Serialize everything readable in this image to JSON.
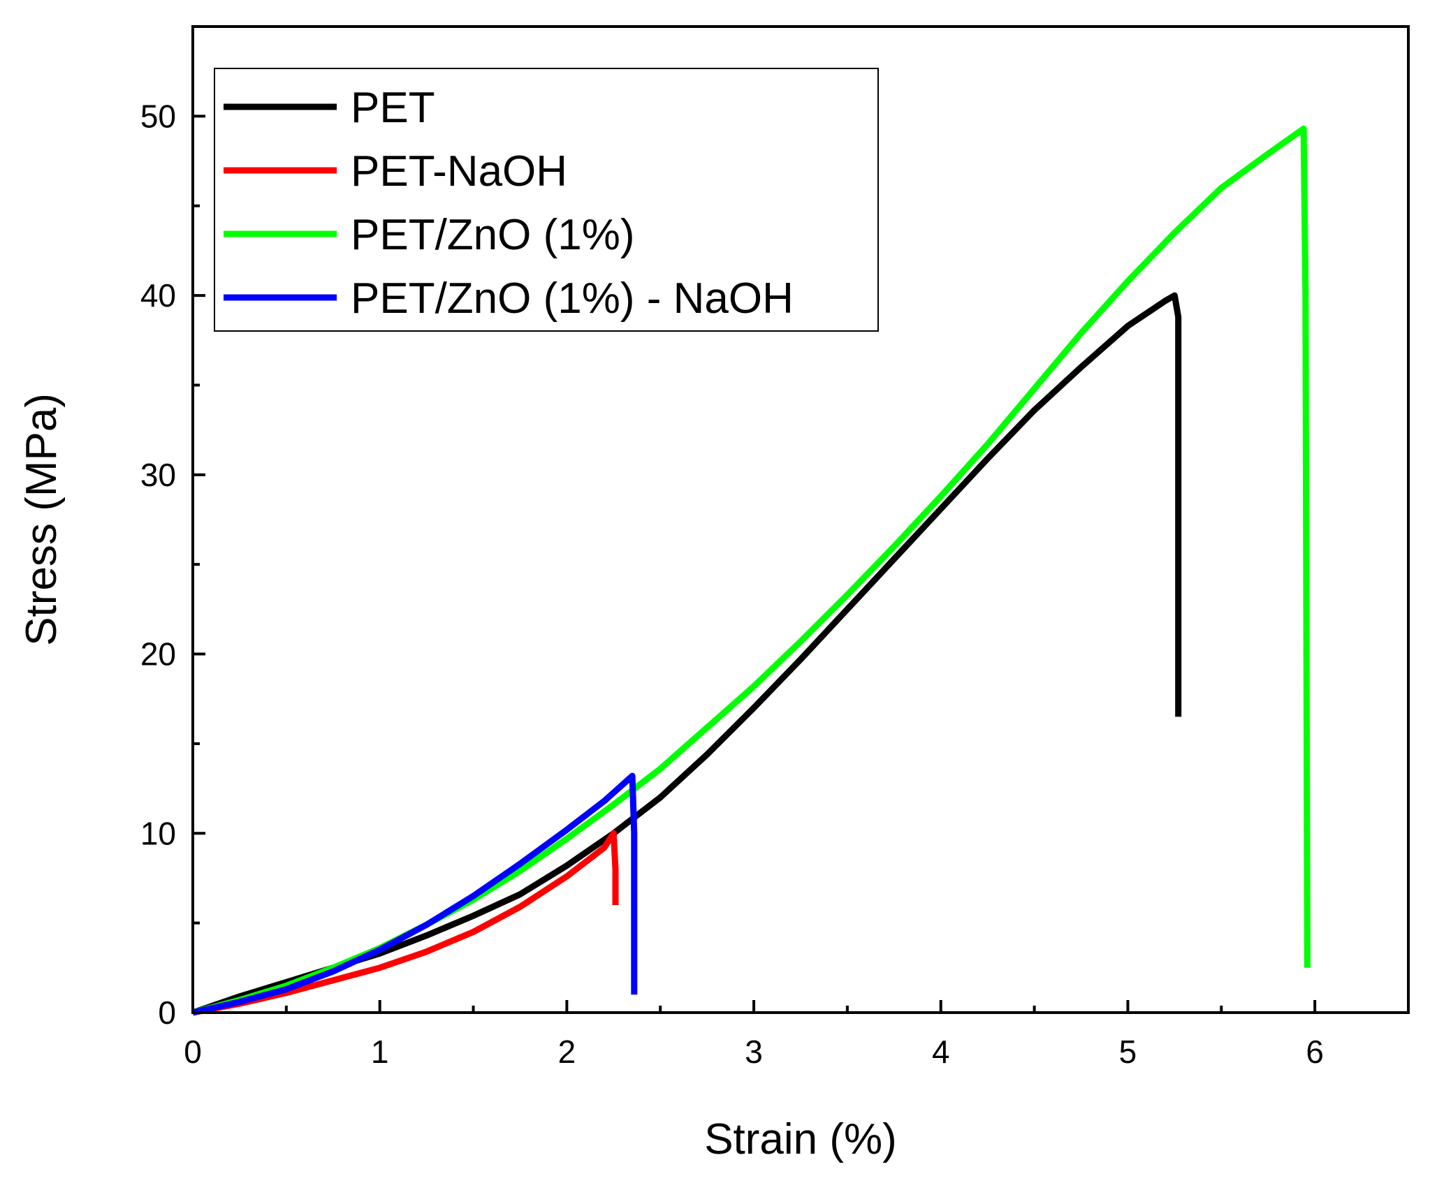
{
  "chart_data": {
    "type": "line",
    "xlabel": "Strain (%)",
    "ylabel": "Stress (MPa)",
    "xlim": [
      0,
      6.5
    ],
    "ylim": [
      0,
      55
    ],
    "xticks": [
      "0",
      "1",
      "2",
      "3",
      "4",
      "5",
      "6"
    ],
    "yticks": [
      "0",
      "10",
      "20",
      "30",
      "40",
      "50"
    ],
    "grid": false,
    "legend_position": "top-left",
    "series": [
      {
        "name": "PET",
        "color": "#000000",
        "points": [
          [
            0,
            0
          ],
          [
            0.25,
            0.9
          ],
          [
            0.5,
            1.7
          ],
          [
            0.75,
            2.5
          ],
          [
            1.0,
            3.3
          ],
          [
            1.25,
            4.3
          ],
          [
            1.5,
            5.4
          ],
          [
            1.75,
            6.6
          ],
          [
            2.0,
            8.2
          ],
          [
            2.25,
            10.0
          ],
          [
            2.5,
            12.0
          ],
          [
            2.75,
            14.4
          ],
          [
            3.0,
            17.0
          ],
          [
            3.25,
            19.7
          ],
          [
            3.5,
            22.5
          ],
          [
            3.75,
            25.3
          ],
          [
            4.0,
            28.1
          ],
          [
            4.25,
            30.9
          ],
          [
            4.5,
            33.6
          ],
          [
            4.75,
            36.0
          ],
          [
            5.0,
            38.3
          ],
          [
            5.2,
            39.7
          ],
          [
            5.25,
            40.0
          ],
          [
            5.27,
            38.8
          ],
          [
            5.27,
            16.5
          ]
        ]
      },
      {
        "name": "PET-NaOH",
        "color": "#ff0000",
        "points": [
          [
            0,
            0
          ],
          [
            0.25,
            0.5
          ],
          [
            0.5,
            1.1
          ],
          [
            0.75,
            1.8
          ],
          [
            1.0,
            2.5
          ],
          [
            1.25,
            3.4
          ],
          [
            1.5,
            4.5
          ],
          [
            1.75,
            5.9
          ],
          [
            2.0,
            7.6
          ],
          [
            2.2,
            9.2
          ],
          [
            2.25,
            10.0
          ],
          [
            2.26,
            8.0
          ],
          [
            2.26,
            6.0
          ]
        ]
      },
      {
        "name": "PET/ZnO (1%)",
        "color": "#00ff00",
        "points": [
          [
            0,
            0
          ],
          [
            0.25,
            0.7
          ],
          [
            0.5,
            1.5
          ],
          [
            0.75,
            2.5
          ],
          [
            1.0,
            3.6
          ],
          [
            1.25,
            4.9
          ],
          [
            1.5,
            6.3
          ],
          [
            1.75,
            7.9
          ],
          [
            2.0,
            9.7
          ],
          [
            2.25,
            11.6
          ],
          [
            2.5,
            13.6
          ],
          [
            2.75,
            15.9
          ],
          [
            3.0,
            18.2
          ],
          [
            3.25,
            20.7
          ],
          [
            3.5,
            23.3
          ],
          [
            3.75,
            26.0
          ],
          [
            4.0,
            28.8
          ],
          [
            4.25,
            31.7
          ],
          [
            4.5,
            34.8
          ],
          [
            4.75,
            37.9
          ],
          [
            5.0,
            40.8
          ],
          [
            5.25,
            43.5
          ],
          [
            5.5,
            46.0
          ],
          [
            5.75,
            47.9
          ],
          [
            5.94,
            49.3
          ],
          [
            5.95,
            40.0
          ],
          [
            5.96,
            2.5
          ]
        ]
      },
      {
        "name": "PET/ZnO (1%) - NaOH",
        "color": "#0000ff",
        "points": [
          [
            0,
            0
          ],
          [
            0.25,
            0.6
          ],
          [
            0.5,
            1.3
          ],
          [
            0.75,
            2.3
          ],
          [
            1.0,
            3.5
          ],
          [
            1.25,
            4.9
          ],
          [
            1.5,
            6.5
          ],
          [
            1.75,
            8.3
          ],
          [
            2.0,
            10.2
          ],
          [
            2.2,
            11.8
          ],
          [
            2.35,
            13.2
          ],
          [
            2.36,
            10.0
          ],
          [
            2.36,
            1.0
          ]
        ]
      }
    ]
  }
}
